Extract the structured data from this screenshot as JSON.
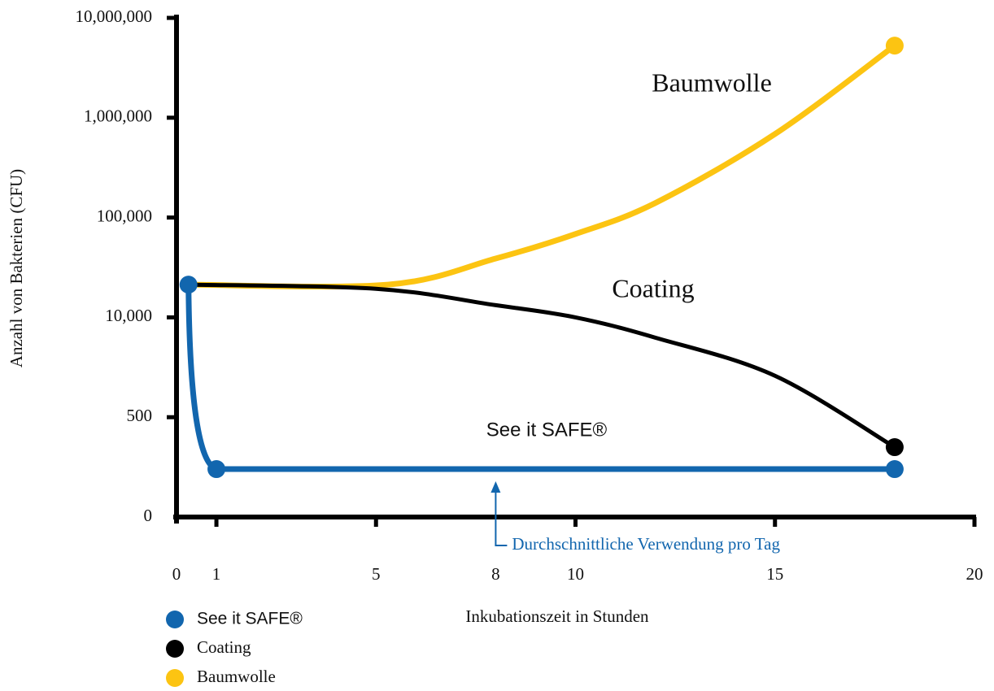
{
  "chart_data": {
    "type": "line",
    "xlabel": "Inkubationszeit in Stunden",
    "ylabel": "Anzahl von Bakterien (CFU)",
    "xlim": [
      0,
      20
    ],
    "xticks": [
      0,
      1,
      5,
      8,
      10,
      15,
      20
    ],
    "yticks": [
      0,
      500,
      {
        "value": 10000,
        "label": "10,000"
      },
      {
        "value": 100000,
        "label": "100,000"
      },
      {
        "value": 1000000,
        "label": "1,000,000"
      },
      {
        "value": 10000000,
        "label": "10,000,000"
      }
    ],
    "series": [
      {
        "name": "See it SAFE®",
        "color": "#1266ae",
        "markers": "all",
        "x": [
          0.3,
          1,
          18
        ],
        "values": [
          39500,
          240,
          240
        ]
      },
      {
        "name": "Coating",
        "color": "#000000",
        "markers": "end",
        "x": [
          0.3,
          5,
          8,
          10,
          12,
          15,
          18
        ],
        "values": [
          39500,
          35800,
          21000,
          10000,
          8070,
          4440,
          350
        ]
      },
      {
        "name": "Baumwolle",
        "color": "#fcc412",
        "markers": "end",
        "x": [
          0.3,
          5.3,
          8,
          10,
          12,
          15,
          18
        ],
        "values": [
          39500,
          39500,
          63100,
          85200,
          231000,
          853000,
          7500000
        ]
      }
    ],
    "annotations": [
      {
        "text": "Baumwolle"
      },
      {
        "text": "Coating"
      },
      {
        "text": "See it SAFE®"
      },
      {
        "text": "Durchschnittliche Verwendung pro Tag",
        "x": 8
      }
    ]
  }
}
